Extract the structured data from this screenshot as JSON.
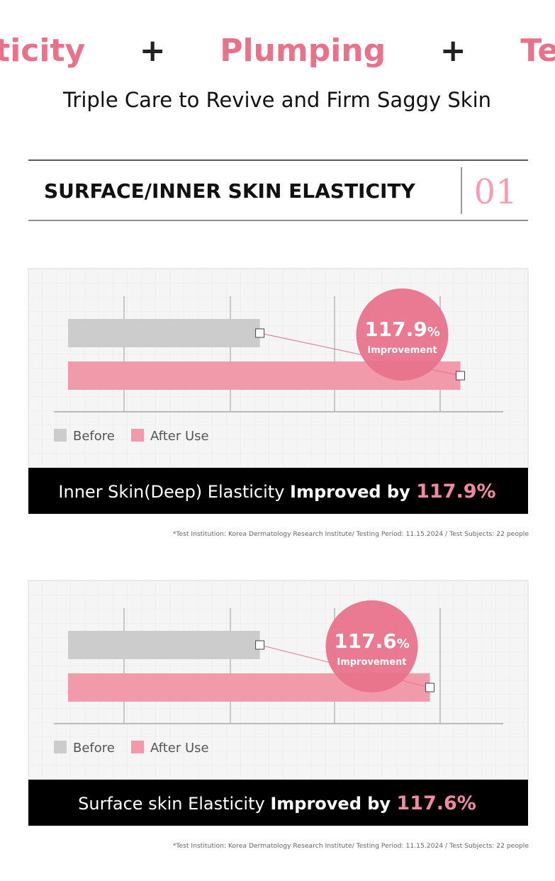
{
  "header": {
    "title_parts": [
      "Elasticity",
      "+",
      "Plumping",
      "+",
      "Texture"
    ],
    "subtitle": "Triple Care to Revive and Firm Saggy Skin",
    "section_title": "SURFACE/INNER SKIN ELASTICITY",
    "section_number": "01"
  },
  "chart_data": [
    {
      "type": "bar",
      "orientation": "horizontal",
      "xlim": [
        0,
        100
      ],
      "series": [
        {
          "name": "Before",
          "color": "#cccccc",
          "values": [
            44
          ]
        },
        {
          "name": "After Use",
          "color": "#f09aaa",
          "values": [
            90
          ]
        }
      ],
      "callout_number": "117.9",
      "callout_unit": "%",
      "callout_label": "Improvement",
      "caption": [
        "Inner Skin(Deep) Elasticity ",
        "Improved by ",
        "117.9%"
      ],
      "footnote": "*Test Institution: Korea Dermatology Research Institute/ Testing Period: 11.15.2024 / Test Subjects: 22 people"
    },
    {
      "type": "bar",
      "orientation": "horizontal",
      "xlim": [
        0,
        100
      ],
      "series": [
        {
          "name": "Before",
          "color": "#cccccc",
          "values": [
            44
          ]
        },
        {
          "name": "After Use",
          "color": "#f09aaa",
          "values": [
            83
          ]
        }
      ],
      "callout_number": "117.6",
      "callout_unit": "%",
      "callout_label": "Improvement",
      "caption": [
        "Surface skin Elasticity ",
        "Improved by ",
        "117.6%"
      ],
      "footnote": "*Test Institution: Korea Dermatology Research Institute/ Testing Period: 11.15.2024 / Test Subjects: 22 people"
    }
  ]
}
